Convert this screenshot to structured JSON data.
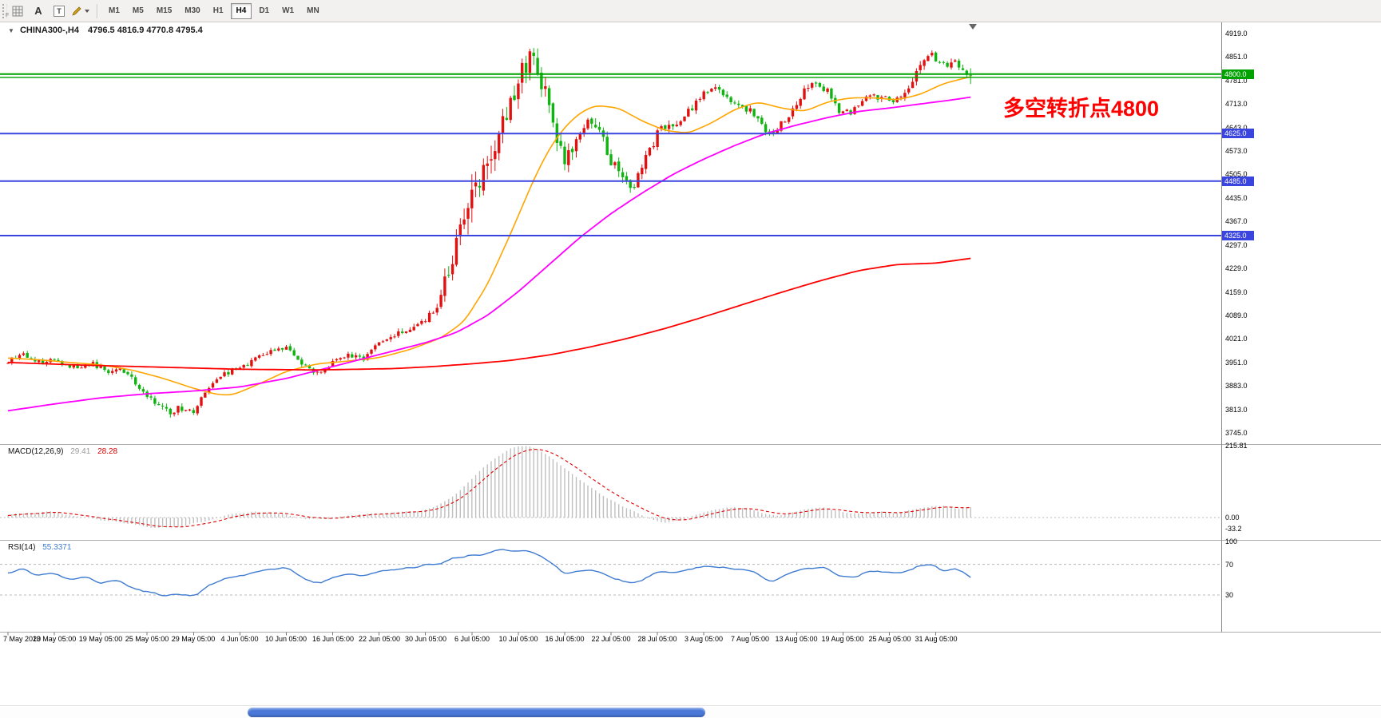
{
  "window": {
    "bg": "#FFFFFF"
  },
  "toolbar": {
    "grip_label": "F",
    "tools": [
      {
        "id": "grid",
        "label": ""
      },
      {
        "id": "text",
        "label": "A"
      },
      {
        "id": "textbox",
        "label": "T"
      },
      {
        "id": "draw",
        "label": ""
      }
    ],
    "periods": [
      "M1",
      "M5",
      "M15",
      "M30",
      "H1",
      "H4",
      "D1",
      "W1",
      "MN"
    ],
    "active_period": "H4"
  },
  "header": {
    "symbol": "CHINA300-,H4",
    "ohlc": "4796.5 4816.9 4770.8 4795.4"
  },
  "annotation": {
    "text": "多空转折点4800",
    "color": "#FF0000"
  },
  "price_axis": {
    "labels": [
      "4919.0",
      "4851.0",
      "4781.0",
      "4713.0",
      "4643.0",
      "4573.0",
      "4505.0",
      "4435.0",
      "4367.0",
      "4297.0",
      "4229.0",
      "4159.0",
      "4089.0",
      "4021.0",
      "3951.0",
      "3883.0",
      "3813.0",
      "3745.0"
    ],
    "badges": [
      {
        "label": "4800.0",
        "price": 4800,
        "color": "#00A200"
      },
      {
        "label": "4625.0",
        "price": 4625,
        "color": "#3A45E0"
      },
      {
        "label": "4485.0",
        "price": 4485,
        "color": "#3A45E0"
      },
      {
        "label": "4325.0",
        "price": 4325,
        "color": "#3A45E0"
      }
    ]
  },
  "hlines": [
    {
      "price": 4800,
      "color": "#00A200",
      "width": 2
    },
    {
      "price": 4790,
      "color": "#00A200",
      "width": 1.4
    },
    {
      "price": 4625,
      "color": "#3A45E0",
      "width": 2
    },
    {
      "price": 4485,
      "color": "#3A45E0",
      "width": 2
    },
    {
      "price": 4325,
      "color": "#3A45E0",
      "width": 2
    }
  ],
  "time_axis": {
    "labels": [
      "7 May 2020",
      "13 May 05:00",
      "19 May 05:00",
      "25 May 05:00",
      "29 May 05:00",
      "4 Jun 05:00",
      "10 Jun 05:00",
      "16 Jun 05:00",
      "22 Jun 05:00",
      "30 Jun 05:00",
      "6 Jul 05:00",
      "10 Jul 05:00",
      "16 Jul 05:00",
      "22 Jul 05:00",
      "28 Jul 05:00",
      "3 Aug 05:00",
      "7 Aug 05:00",
      "13 Aug 05:00",
      "19 Aug 05:00",
      "25 Aug 05:00",
      "31 Aug 05:00"
    ]
  },
  "macd": {
    "name": "MACD(12,26,9)",
    "value_main": "29.41",
    "value_signal": "28.28",
    "axis": [
      {
        "label": "215.81",
        "value": 215.81
      },
      {
        "label": "0.00",
        "value": 0
      },
      {
        "label": "-33.2",
        "value": -33.2
      }
    ]
  },
  "rsi": {
    "name": "RSI(14)",
    "value": "55.3371",
    "levels": [
      70,
      30
    ],
    "axis": [
      {
        "label": "100",
        "value": 100
      },
      {
        "label": "70",
        "value": 70
      },
      {
        "label": "30",
        "value": 30
      }
    ]
  },
  "scrollbar": {
    "thumb_color": "#4A78D8"
  },
  "chart_data": {
    "type": "candlestick-with-indicators",
    "symbol": "CHINA300-",
    "timeframe": "H4",
    "n_candles": 250,
    "price_range_visible": [
      3745,
      4919
    ],
    "colors": {
      "up": "#E31010",
      "down": "#10B410",
      "ma_fast": "#FFA500",
      "ma_mid": "#FF00FF",
      "ma_slow": "#FF0000",
      "macd_hist": "#BFBFBF",
      "macd_signal": "#E00000",
      "rsi_line": "#3E7BD1"
    },
    "last_candle": {
      "o": 4796.5,
      "h": 4816.9,
      "l": 4770.8,
      "c": 4795.4
    },
    "price_path": [
      [
        0,
        3950
      ],
      [
        4,
        3985
      ],
      [
        8,
        3950
      ],
      [
        12,
        3962
      ],
      [
        18,
        3938
      ],
      [
        22,
        3952
      ],
      [
        26,
        3922
      ],
      [
        30,
        3936
      ],
      [
        34,
        3882
      ],
      [
        38,
        3840
      ],
      [
        42,
        3802
      ],
      [
        46,
        3826
      ],
      [
        48,
        3798
      ],
      [
        52,
        3868
      ],
      [
        56,
        3918
      ],
      [
        60,
        3934
      ],
      [
        64,
        3958
      ],
      [
        68,
        3980
      ],
      [
        72,
        4000
      ],
      [
        76,
        3952
      ],
      [
        80,
        3918
      ],
      [
        84,
        3948
      ],
      [
        88,
        3976
      ],
      [
        92,
        3960
      ],
      [
        96,
        4004
      ],
      [
        100,
        4028
      ],
      [
        104,
        4048
      ],
      [
        108,
        4078
      ],
      [
        112,
        4128
      ],
      [
        116,
        4278
      ],
      [
        120,
        4438
      ],
      [
        124,
        4548
      ],
      [
        128,
        4638
      ],
      [
        132,
        4748
      ],
      [
        135,
        4868
      ],
      [
        138,
        4798
      ],
      [
        141,
        4678
      ],
      [
        144,
        4520
      ],
      [
        147,
        4598
      ],
      [
        150,
        4658
      ],
      [
        153,
        4638
      ],
      [
        156,
        4558
      ],
      [
        159,
        4500
      ],
      [
        162,
        4458
      ],
      [
        165,
        4538
      ],
      [
        168,
        4618
      ],
      [
        171,
        4648
      ],
      [
        174,
        4638
      ],
      [
        177,
        4698
      ],
      [
        180,
        4738
      ],
      [
        184,
        4758
      ],
      [
        188,
        4718
      ],
      [
        192,
        4698
      ],
      [
        195,
        4658
      ],
      [
        198,
        4618
      ],
      [
        201,
        4658
      ],
      [
        204,
        4698
      ],
      [
        208,
        4778
      ],
      [
        212,
        4758
      ],
      [
        215,
        4698
      ],
      [
        218,
        4678
      ],
      [
        221,
        4718
      ],
      [
        224,
        4738
      ],
      [
        227,
        4728
      ],
      [
        230,
        4718
      ],
      [
        233,
        4748
      ],
      [
        236,
        4818
      ],
      [
        239,
        4868
      ],
      [
        242,
        4818
      ],
      [
        245,
        4838
      ],
      [
        247,
        4808
      ],
      [
        249,
        4795
      ]
    ],
    "volatility_path": [
      [
        0,
        22
      ],
      [
        20,
        20
      ],
      [
        36,
        26
      ],
      [
        48,
        24
      ],
      [
        60,
        18
      ],
      [
        80,
        20
      ],
      [
        100,
        22
      ],
      [
        108,
        30
      ],
      [
        112,
        50
      ],
      [
        116,
        95
      ],
      [
        120,
        130
      ],
      [
        124,
        105
      ],
      [
        128,
        85
      ],
      [
        133,
        80
      ],
      [
        138,
        72
      ],
      [
        144,
        65
      ],
      [
        150,
        50
      ],
      [
        158,
        45
      ],
      [
        164,
        42
      ],
      [
        172,
        35
      ],
      [
        180,
        30
      ],
      [
        190,
        28
      ],
      [
        198,
        32
      ],
      [
        206,
        28
      ],
      [
        214,
        26
      ],
      [
        222,
        24
      ],
      [
        230,
        24
      ],
      [
        236,
        32
      ],
      [
        242,
        30
      ],
      [
        249,
        26
      ]
    ],
    "ma_fast": [
      [
        0,
        3965
      ],
      [
        8,
        3960
      ],
      [
        16,
        3952
      ],
      [
        24,
        3945
      ],
      [
        32,
        3930
      ],
      [
        40,
        3906
      ],
      [
        48,
        3876
      ],
      [
        54,
        3858
      ],
      [
        58,
        3856
      ],
      [
        64,
        3884
      ],
      [
        72,
        3926
      ],
      [
        80,
        3948
      ],
      [
        88,
        3956
      ],
      [
        96,
        3966
      ],
      [
        104,
        3990
      ],
      [
        112,
        4024
      ],
      [
        118,
        4072
      ],
      [
        124,
        4180
      ],
      [
        130,
        4330
      ],
      [
        136,
        4490
      ],
      [
        140,
        4580
      ],
      [
        144,
        4644
      ],
      [
        148,
        4686
      ],
      [
        152,
        4708
      ],
      [
        158,
        4700
      ],
      [
        164,
        4662
      ],
      [
        170,
        4634
      ],
      [
        176,
        4626
      ],
      [
        182,
        4656
      ],
      [
        188,
        4696
      ],
      [
        194,
        4718
      ],
      [
        200,
        4700
      ],
      [
        206,
        4690
      ],
      [
        212,
        4718
      ],
      [
        218,
        4730
      ],
      [
        224,
        4730
      ],
      [
        230,
        4724
      ],
      [
        236,
        4740
      ],
      [
        242,
        4772
      ],
      [
        249,
        4792
      ]
    ],
    "ma_mid": [
      [
        0,
        3810
      ],
      [
        12,
        3830
      ],
      [
        24,
        3848
      ],
      [
        36,
        3860
      ],
      [
        48,
        3868
      ],
      [
        60,
        3880
      ],
      [
        72,
        3905
      ],
      [
        84,
        3940
      ],
      [
        96,
        3975
      ],
      [
        108,
        4010
      ],
      [
        116,
        4040
      ],
      [
        124,
        4090
      ],
      [
        132,
        4160
      ],
      [
        140,
        4240
      ],
      [
        148,
        4320
      ],
      [
        156,
        4390
      ],
      [
        164,
        4450
      ],
      [
        172,
        4505
      ],
      [
        180,
        4550
      ],
      [
        188,
        4590
      ],
      [
        196,
        4625
      ],
      [
        204,
        4650
      ],
      [
        212,
        4672
      ],
      [
        220,
        4690
      ],
      [
        228,
        4700
      ],
      [
        236,
        4712
      ],
      [
        243,
        4722
      ],
      [
        249,
        4732
      ]
    ],
    "ma_slow": [
      [
        0,
        3952
      ],
      [
        20,
        3944
      ],
      [
        40,
        3938
      ],
      [
        60,
        3932
      ],
      [
        80,
        3930
      ],
      [
        100,
        3934
      ],
      [
        110,
        3940
      ],
      [
        120,
        3948
      ],
      [
        130,
        3958
      ],
      [
        140,
        3974
      ],
      [
        150,
        3996
      ],
      [
        160,
        4022
      ],
      [
        170,
        4052
      ],
      [
        180,
        4086
      ],
      [
        190,
        4122
      ],
      [
        200,
        4158
      ],
      [
        210,
        4192
      ],
      [
        220,
        4222
      ],
      [
        230,
        4240
      ],
      [
        240,
        4244
      ],
      [
        249,
        4258
      ]
    ],
    "macd_path": [
      [
        0,
        8
      ],
      [
        6,
        14
      ],
      [
        10,
        18
      ],
      [
        14,
        12
      ],
      [
        18,
        4
      ],
      [
        22,
        -4
      ],
      [
        26,
        -10
      ],
      [
        30,
        -16
      ],
      [
        34,
        -24
      ],
      [
        38,
        -30
      ],
      [
        42,
        -32
      ],
      [
        46,
        -26
      ],
      [
        50,
        -14
      ],
      [
        54,
        0
      ],
      [
        58,
        10
      ],
      [
        62,
        16
      ],
      [
        66,
        16
      ],
      [
        70,
        12
      ],
      [
        74,
        4
      ],
      [
        78,
        -4
      ],
      [
        82,
        -6
      ],
      [
        86,
        2
      ],
      [
        90,
        8
      ],
      [
        94,
        12
      ],
      [
        98,
        14
      ],
      [
        102,
        16
      ],
      [
        106,
        20
      ],
      [
        110,
        30
      ],
      [
        114,
        55
      ],
      [
        118,
        95
      ],
      [
        122,
        140
      ],
      [
        126,
        180
      ],
      [
        130,
        208
      ],
      [
        133,
        215
      ],
      [
        136,
        208
      ],
      [
        139,
        190
      ],
      [
        142,
        165
      ],
      [
        146,
        130
      ],
      [
        150,
        95
      ],
      [
        154,
        65
      ],
      [
        158,
        40
      ],
      [
        162,
        18
      ],
      [
        166,
        -5
      ],
      [
        170,
        -18
      ],
      [
        174,
        -8
      ],
      [
        178,
        8
      ],
      [
        182,
        22
      ],
      [
        186,
        32
      ],
      [
        190,
        30
      ],
      [
        194,
        18
      ],
      [
        198,
        5
      ],
      [
        202,
        12
      ],
      [
        206,
        24
      ],
      [
        210,
        32
      ],
      [
        214,
        22
      ],
      [
        218,
        10
      ],
      [
        222,
        12
      ],
      [
        226,
        18
      ],
      [
        230,
        14
      ],
      [
        234,
        22
      ],
      [
        238,
        32
      ],
      [
        242,
        34
      ],
      [
        246,
        28
      ],
      [
        249,
        29.4
      ]
    ],
    "rsi_path": [
      [
        0,
        60
      ],
      [
        4,
        65
      ],
      [
        8,
        55
      ],
      [
        12,
        60
      ],
      [
        16,
        50
      ],
      [
        20,
        55
      ],
      [
        24,
        45
      ],
      [
        28,
        50
      ],
      [
        32,
        40
      ],
      [
        36,
        35
      ],
      [
        40,
        30
      ],
      [
        44,
        33
      ],
      [
        48,
        29
      ],
      [
        52,
        42
      ],
      [
        56,
        52
      ],
      [
        60,
        55
      ],
      [
        64,
        60
      ],
      [
        68,
        63
      ],
      [
        72,
        66
      ],
      [
        76,
        52
      ],
      [
        80,
        45
      ],
      [
        84,
        52
      ],
      [
        88,
        58
      ],
      [
        92,
        55
      ],
      [
        96,
        62
      ],
      [
        100,
        64
      ],
      [
        104,
        66
      ],
      [
        108,
        68
      ],
      [
        112,
        72
      ],
      [
        116,
        78
      ],
      [
        120,
        82
      ],
      [
        124,
        85
      ],
      [
        128,
        88
      ],
      [
        132,
        87
      ],
      [
        135,
        88
      ],
      [
        138,
        80
      ],
      [
        141,
        70
      ],
      [
        144,
        57
      ],
      [
        147,
        60
      ],
      [
        150,
        63
      ],
      [
        153,
        60
      ],
      [
        156,
        52
      ],
      [
        159,
        48
      ],
      [
        162,
        45
      ],
      [
        165,
        52
      ],
      [
        168,
        58
      ],
      [
        171,
        62
      ],
      [
        174,
        60
      ],
      [
        177,
        64
      ],
      [
        180,
        67
      ],
      [
        184,
        68
      ],
      [
        188,
        64
      ],
      [
        192,
        60
      ],
      [
        196,
        52
      ],
      [
        198,
        48
      ],
      [
        201,
        55
      ],
      [
        204,
        60
      ],
      [
        208,
        66
      ],
      [
        212,
        64
      ],
      [
        215,
        56
      ],
      [
        218,
        52
      ],
      [
        221,
        58
      ],
      [
        224,
        62
      ],
      [
        227,
        60
      ],
      [
        230,
        58
      ],
      [
        233,
        62
      ],
      [
        236,
        68
      ],
      [
        239,
        70
      ],
      [
        242,
        62
      ],
      [
        245,
        64
      ],
      [
        247,
        60
      ],
      [
        249,
        55.3
      ]
    ]
  }
}
